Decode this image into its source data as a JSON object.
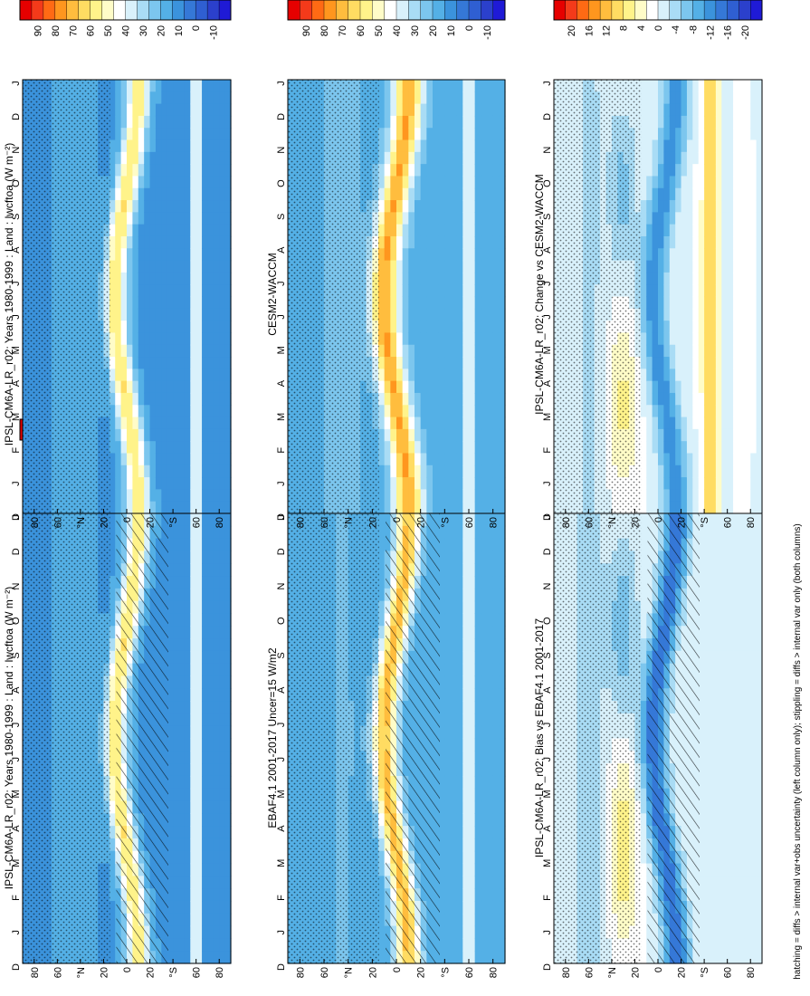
{
  "figure": {
    "footnote": "hatching = diffs > internal var+obs uncertainty (left column only); stippling = diffs > internal var only (both columns)"
  },
  "colors": {
    "abs_palette": [
      "#e60000",
      "#f43a1a",
      "#ff6a14",
      "#ff961e",
      "#ffbd3e",
      "#ffdc62",
      "#fff38a",
      "#fffcc8",
      "#ffffff",
      "#d9f1fb",
      "#a9dcf5",
      "#7cc6ee",
      "#54b0e6",
      "#3b93dc",
      "#3578d7",
      "#2f5fd2",
      "#2b40cc",
      "#1f1ad6"
    ],
    "diff_palette": [
      "#e60000",
      "#f43a1a",
      "#ff6a14",
      "#ff961e",
      "#ffbd3e",
      "#ffdc62",
      "#fff38a",
      "#fffcc8",
      "#ffffff",
      "#d9f1fb",
      "#a9dcf5",
      "#7cc6ee",
      "#54b0e6",
      "#3b93dc",
      "#3578d7",
      "#2f5fd2",
      "#2b40cc",
      "#1f1ad6"
    ],
    "white_band": "#ffffff"
  },
  "chart_data": [
    {
      "id": "top-left",
      "type": "heatmap",
      "title": "IPSL-CM6A-LR_r02: Years 1980-1999 : Land : lwcftoa (W m⁻²)",
      "x": [
        "J",
        "F",
        "M",
        "A",
        "M",
        "J",
        "J",
        "A",
        "S",
        "O",
        "N",
        "D"
      ],
      "x_ends": [
        "D",
        "J"
      ],
      "y_ticks": [
        "80",
        "60",
        "°N",
        "20",
        "0",
        "20",
        "°S",
        "60",
        "80"
      ],
      "ylim": [
        -90,
        90
      ],
      "colorbar_ticks": [
        "90",
        "80",
        "70",
        "60",
        "50",
        "40",
        "30",
        "20",
        "10",
        "0",
        "-10"
      ],
      "colorbar_range": [
        -10,
        95
      ],
      "hatching": true,
      "stippling": true
    },
    {
      "id": "mid-left",
      "type": "heatmap",
      "title": "EBAF4.1 2001-2017 Uncer=15 W/m2",
      "x": [
        "J",
        "F",
        "M",
        "A",
        "M",
        "J",
        "J",
        "A",
        "S",
        "O",
        "N",
        "D"
      ],
      "x_ends": [
        "D",
        "J"
      ],
      "y_ticks": [
        "80",
        "60",
        "°N",
        "20",
        "0",
        "20",
        "°S",
        "60",
        "80"
      ],
      "ylim": [
        -90,
        90
      ],
      "colorbar_ticks": [
        "90",
        "80",
        "70",
        "60",
        "50",
        "40",
        "30",
        "20",
        "10",
        "0",
        "-10"
      ],
      "colorbar_range": [
        -10,
        95
      ],
      "hatching": true,
      "stippling": true
    },
    {
      "id": "bottom-left",
      "type": "heatmap",
      "title": "IPSL-CM6A-LR_r02: Bias vs EBAF4.1 2001-2017",
      "x": [
        "J",
        "F",
        "M",
        "A",
        "M",
        "J",
        "J",
        "A",
        "S",
        "O",
        "N",
        "D"
      ],
      "x_ends": [
        "D",
        "J"
      ],
      "y_ticks": [
        "80",
        "60",
        "°N",
        "20",
        "0",
        "20",
        "°S",
        "60",
        "80"
      ],
      "ylim": [
        -90,
        90
      ],
      "colorbar_ticks": [
        "20",
        "16",
        "12",
        "8",
        "4",
        "0",
        "-4",
        "-8",
        "-12",
        "-16",
        "-20"
      ],
      "colorbar_range": [
        -22,
        22
      ],
      "hatching": true,
      "stippling": true
    },
    {
      "id": "top-right",
      "type": "heatmap",
      "title": "IPSL-CM6A-LR_r02: Years 1980-1999 : Land : lwcftoa (W m⁻²)",
      "x": [
        "J",
        "F",
        "M",
        "A",
        "M",
        "J",
        "J",
        "A",
        "S",
        "O",
        "N",
        "D"
      ],
      "x_ends": [
        "D",
        "J"
      ],
      "y_ticks": [
        "80",
        "60",
        "°N",
        "20",
        "0",
        "20",
        "°S",
        "60",
        "80"
      ],
      "ylim": [
        -90,
        90
      ],
      "colorbar_ticks": [
        "90",
        "80",
        "70",
        "60",
        "50",
        "40",
        "30",
        "20",
        "10",
        "0",
        "-10"
      ],
      "colorbar_range": [
        -10,
        95
      ],
      "hatching": false,
      "stippling": true
    },
    {
      "id": "mid-right",
      "type": "heatmap",
      "title": "CESM2-WACCM",
      "x": [
        "J",
        "F",
        "M",
        "A",
        "M",
        "J",
        "J",
        "A",
        "S",
        "O",
        "N",
        "D"
      ],
      "x_ends": [
        "D",
        "J"
      ],
      "y_ticks": [
        "80",
        "60",
        "°N",
        "20",
        "0",
        "20",
        "°S",
        "60",
        "80"
      ],
      "ylim": [
        -90,
        90
      ],
      "colorbar_ticks": [
        "90",
        "80",
        "70",
        "60",
        "50",
        "40",
        "30",
        "20",
        "10",
        "0",
        "-10"
      ],
      "colorbar_range": [
        -10,
        95
      ],
      "hatching": false,
      "stippling": true
    },
    {
      "id": "bottom-right",
      "type": "heatmap",
      "title": "IPSL-CM6A-LR_r02: Change vs CESM2-WACCM",
      "x": [
        "J",
        "F",
        "M",
        "A",
        "M",
        "J",
        "J",
        "A",
        "S",
        "O",
        "N",
        "D"
      ],
      "x_ends": [
        "D",
        "J"
      ],
      "y_ticks": [
        "80",
        "60",
        "°N",
        "20",
        "0",
        "20",
        "°S",
        "60",
        "80"
      ],
      "ylim": [
        -90,
        90
      ],
      "colorbar_ticks": [
        "20",
        "16",
        "12",
        "8",
        "4",
        "0",
        "-4",
        "-8",
        "-12",
        "-16",
        "-20"
      ],
      "colorbar_range": [
        -22,
        22
      ],
      "hatching": false,
      "stippling": true
    }
  ]
}
